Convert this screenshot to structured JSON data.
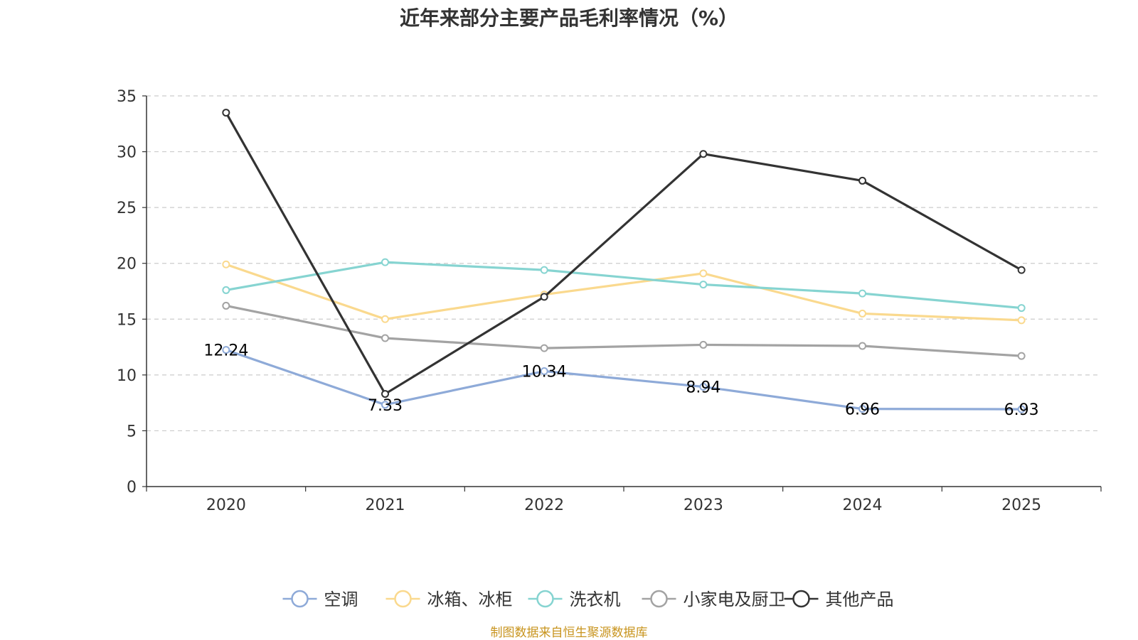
{
  "chart_data": {
    "type": "line",
    "title": "近年来部分主要产品毛利率情况（%）",
    "categories": [
      "2020",
      "2021",
      "2022",
      "2023",
      "2024",
      "2025"
    ],
    "ylim": [
      0,
      35
    ],
    "yticks": [
      0,
      5,
      10,
      15,
      20,
      25,
      30,
      35
    ],
    "grid": true,
    "legend_position": "bottom",
    "series": [
      {
        "name": "空调",
        "color": "#8eaad8",
        "values": [
          12.24,
          7.33,
          10.34,
          8.94,
          6.96,
          6.93
        ],
        "show_labels": true
      },
      {
        "name": "冰箱、冰柜",
        "color": "#fad98e",
        "values": [
          19.9,
          15.0,
          17.2,
          19.1,
          15.5,
          14.9
        ],
        "show_labels": false
      },
      {
        "name": "洗衣机",
        "color": "#86d4d1",
        "values": [
          17.6,
          20.1,
          19.4,
          18.1,
          17.3,
          16.0
        ],
        "show_labels": false
      },
      {
        "name": "小家电及厨卫",
        "color": "#a3a3a3",
        "values": [
          16.2,
          13.3,
          12.4,
          12.7,
          12.6,
          11.7
        ],
        "show_labels": false
      },
      {
        "name": "其他产品",
        "color": "#333333",
        "values": [
          33.5,
          8.3,
          17.0,
          29.8,
          27.4,
          19.4
        ],
        "show_labels": false
      }
    ]
  },
  "source": "制图数据来自恒生聚源数据库"
}
